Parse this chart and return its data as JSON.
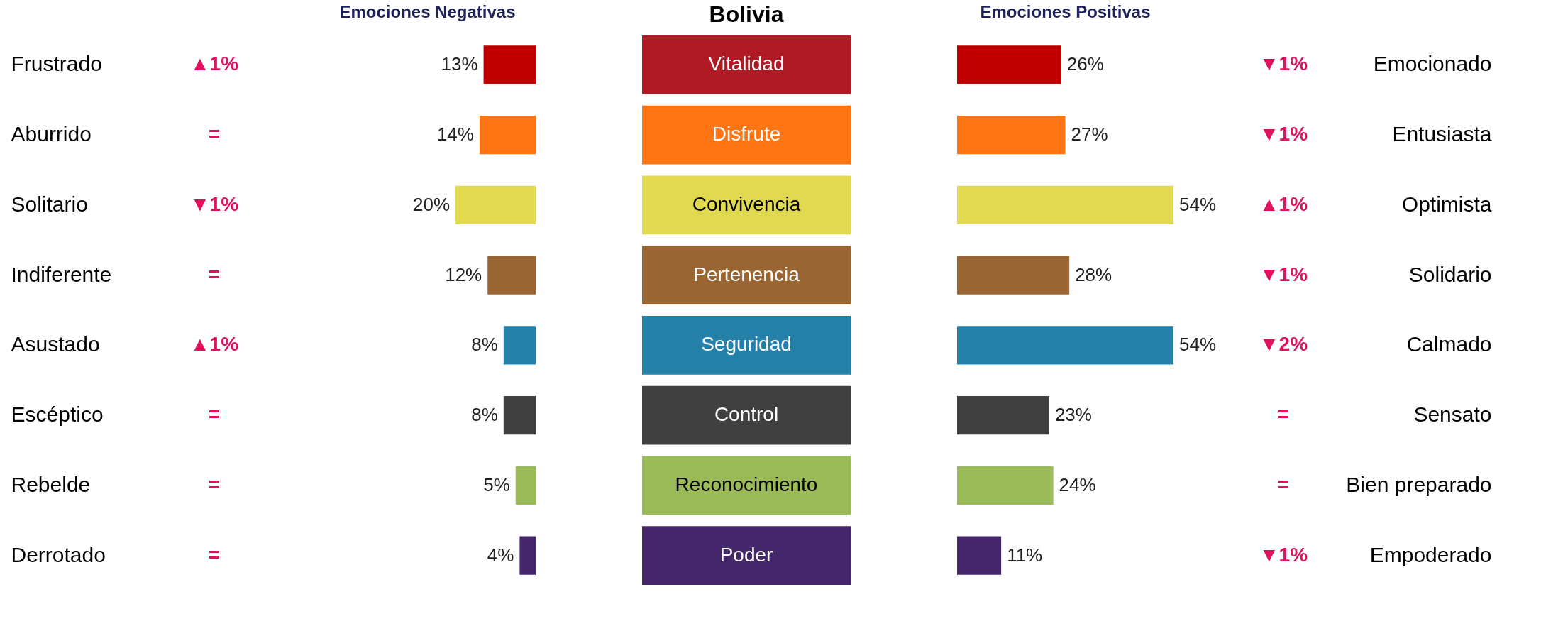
{
  "chart_data": [
    {
      "type": "bar",
      "orientation": "horizontal",
      "title": "Emociones Negativas",
      "tick_labels": "y",
      "categories": [
        "Frustrado",
        "Aburrido",
        "Solitario",
        "Indiferente",
        "Asustado",
        "Escéptico",
        "Rebelde",
        "Derrotado"
      ],
      "values": [
        13,
        14,
        20,
        12,
        8,
        8,
        5,
        4
      ],
      "value_labels": [
        "13%",
        "14%",
        "20%",
        "12%",
        "8%",
        "8%",
        "5%",
        "4%"
      ],
      "colors": [
        "#c00000",
        "#ff7514",
        "#e1da50",
        "#996633",
        "#2480a8",
        "#404040",
        "#9bbb59",
        "#44266a"
      ],
      "annotations": [
        "▲1%",
        "=",
        "▼1%",
        "=",
        "▲1%",
        "=",
        "=",
        "="
      ]
    },
    {
      "type": "other",
      "title": "Bolivia",
      "categories": [
        "Vitalidad",
        "Disfrute",
        "Convivencia",
        "Pertenencia",
        "Seguridad",
        "Control",
        "Reconocimiento",
        "Poder"
      ],
      "colors": [
        "#b01a24",
        "#ff7514",
        "#e1da50",
        "#996633",
        "#2480a8",
        "#404040",
        "#9bbb59",
        "#44266a"
      ]
    },
    {
      "type": "bar",
      "orientation": "horizontal",
      "title": "Emociones Positivas",
      "tick_labels": "y",
      "categories": [
        "Emocionado",
        "Entusiasta",
        "Optimista",
        "Solidario",
        "Calmado",
        "Sensato",
        "Bien preparado",
        "Empoderado"
      ],
      "values": [
        26,
        27,
        54,
        28,
        54,
        23,
        24,
        11
      ],
      "value_labels": [
        "26%",
        "27%",
        "54%",
        "28%",
        "54%",
        "23%",
        "24%",
        "11%"
      ],
      "colors": [
        "#c00000",
        "#ff7514",
        "#e1da50",
        "#996633",
        "#2480a8",
        "#404040",
        "#9bbb59",
        "#44266a"
      ],
      "annotations": [
        "▼1%",
        "▼1%",
        "▲1%",
        "▼1%",
        "▼2%",
        "=",
        "=",
        "▼1%"
      ]
    }
  ]
}
